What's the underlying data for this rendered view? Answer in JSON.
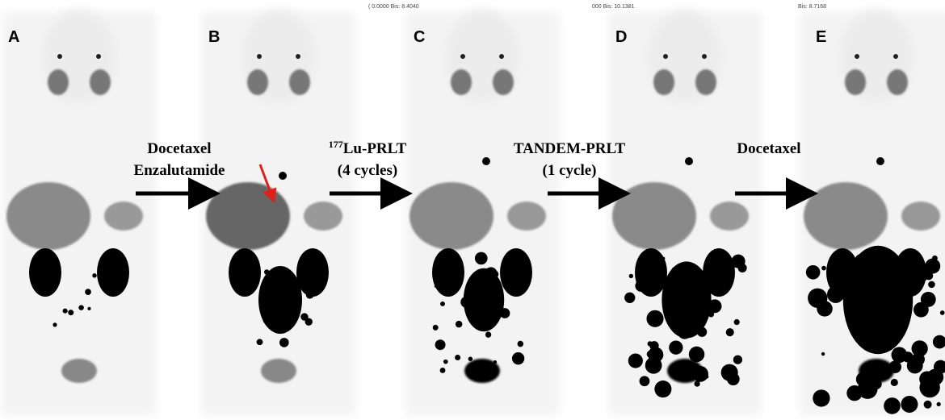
{
  "panels": [
    {
      "label": "A"
    },
    {
      "label": "B"
    },
    {
      "label": "C"
    },
    {
      "label": "D"
    },
    {
      "label": "E"
    }
  ],
  "scanner_readouts": [
    "( 0.0000  Bis: 8.4040",
    "000  Bis: 10.1381",
    "Bis: 8.7168"
  ],
  "transitions": [
    {
      "lines": [
        "Docetaxel",
        "Enzalutamide"
      ]
    },
    {
      "superscript": "177",
      "lines": [
        "Lu-PRLT",
        "(4 cycles)"
      ]
    },
    {
      "lines": [
        "TANDEM-PRLT",
        "(1 cycle)"
      ]
    },
    {
      "lines": [
        "Docetaxel"
      ]
    }
  ]
}
